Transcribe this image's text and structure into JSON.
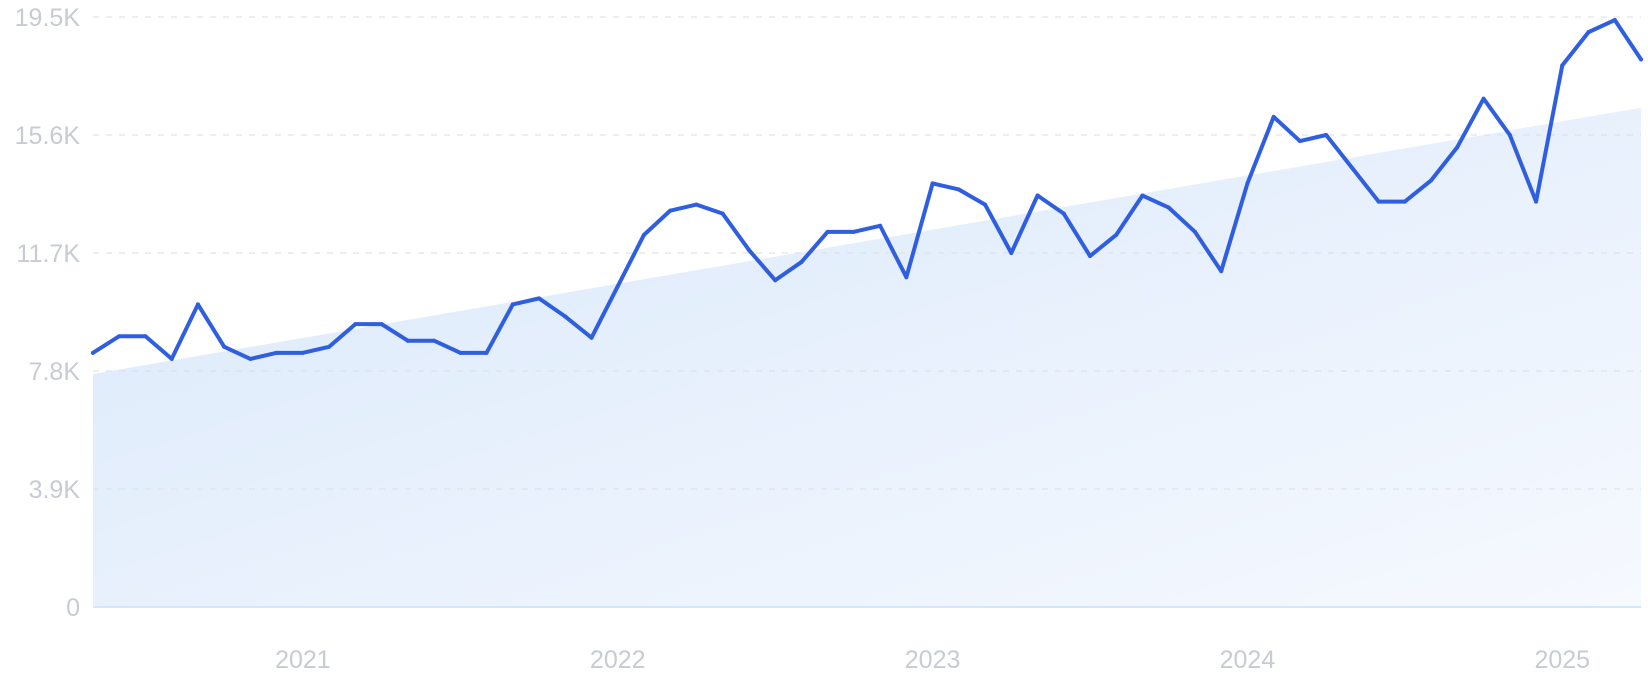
{
  "chart_data": {
    "type": "line",
    "title": "",
    "xlabel": "",
    "ylabel": "",
    "grid": true,
    "ylim": [
      0,
      19500
    ],
    "y_ticks": [
      {
        "value": 0,
        "label": "0"
      },
      {
        "value": 3900,
        "label": "3.9K"
      },
      {
        "value": 7800,
        "label": "7.8K"
      },
      {
        "value": 11700,
        "label": "11.7K"
      },
      {
        "value": 15600,
        "label": "15.6K"
      },
      {
        "value": 19500,
        "label": "19.5K"
      }
    ],
    "x_ticks": [
      {
        "value": "2021-01",
        "label": "2021"
      },
      {
        "value": "2022-01",
        "label": "2022"
      },
      {
        "value": "2023-01",
        "label": "2023"
      },
      {
        "value": "2024-01",
        "label": "2024"
      },
      {
        "value": "2025-01",
        "label": "2025"
      }
    ],
    "xlim": [
      "2020-05",
      "2025-04"
    ],
    "colors": {
      "line": "#2f5fe0",
      "trend_fill": "#dbe9fb",
      "tick_text": "#c7cbd3",
      "grid": "#dfe3ea"
    },
    "trend": {
      "x": [
        "2020-05",
        "2025-04"
      ],
      "values": [
        7700,
        16500
      ]
    },
    "series": [
      {
        "x": [
          "2020-05",
          "2020-06",
          "2020-07",
          "2020-08",
          "2020-09",
          "2020-10",
          "2020-11",
          "2020-12",
          "2021-01",
          "2021-02",
          "2021-03",
          "2021-04",
          "2021-05",
          "2021-06",
          "2021-07",
          "2021-08",
          "2021-09",
          "2021-10",
          "2021-11",
          "2021-12",
          "2022-01",
          "2022-02",
          "2022-03",
          "2022-04",
          "2022-05",
          "2022-06",
          "2022-07",
          "2022-08",
          "2022-09",
          "2022-10",
          "2022-11",
          "2022-12",
          "2023-01",
          "2023-02",
          "2023-03",
          "2023-04",
          "2023-05",
          "2023-06",
          "2023-07",
          "2023-08",
          "2023-09",
          "2023-10",
          "2023-11",
          "2023-12",
          "2024-01",
          "2024-02",
          "2024-03",
          "2024-04",
          "2024-05",
          "2024-06",
          "2024-07",
          "2024-08",
          "2024-09",
          "2024-10",
          "2024-11",
          "2024-12",
          "2025-01",
          "2025-02",
          "2025-03",
          "2025-04"
        ],
        "values": [
          8400,
          8950,
          8950,
          8200,
          10000,
          8600,
          8200,
          8400,
          8400,
          8600,
          9350,
          9350,
          8800,
          8800,
          8400,
          8400,
          10000,
          10200,
          9600,
          8900,
          10600,
          12300,
          13100,
          13300,
          13000,
          11800,
          10800,
          11400,
          12400,
          12400,
          12600,
          10900,
          14000,
          13800,
          13300,
          11700,
          13600,
          13000,
          11600,
          12300,
          13600,
          13200,
          12400,
          11100,
          14000,
          16200,
          15400,
          15600,
          14500,
          13400,
          13400,
          14100,
          15200,
          16800,
          15600,
          13400,
          17900,
          19000,
          19400,
          18100
        ]
      }
    ]
  }
}
